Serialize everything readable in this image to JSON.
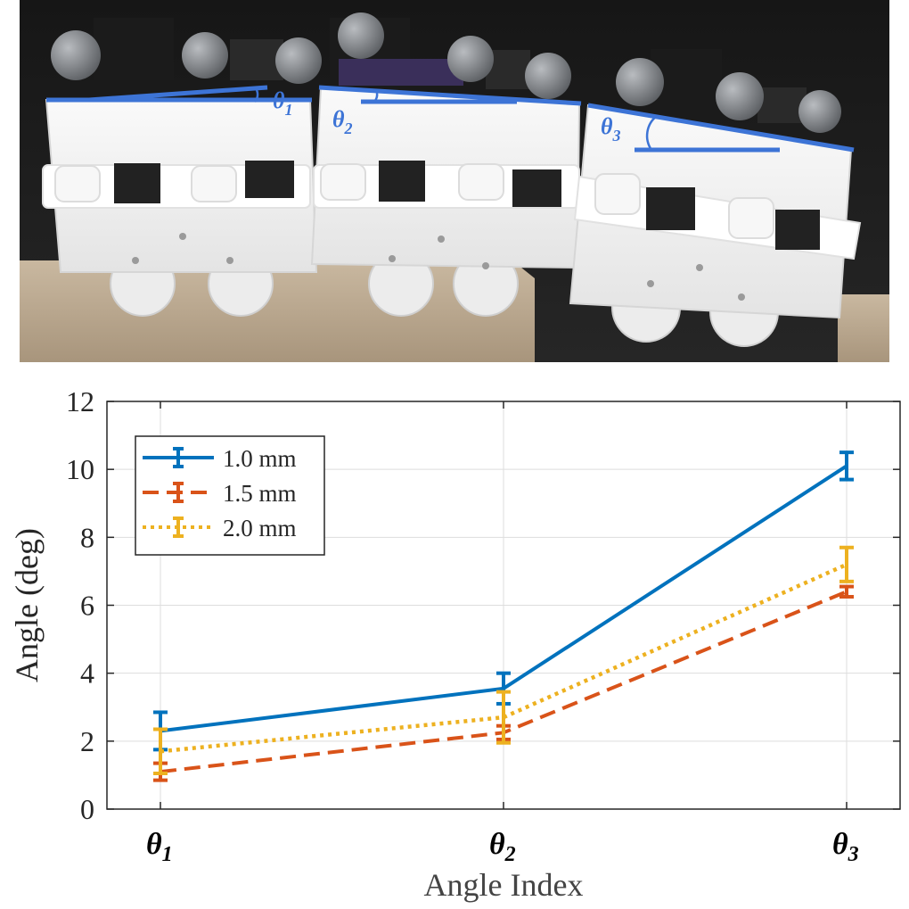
{
  "photo": {
    "labels": [
      {
        "main": "θ",
        "sub": "1"
      },
      {
        "main": "θ",
        "sub": "2"
      },
      {
        "main": "θ",
        "sub": "3"
      }
    ],
    "line_color": "#3d74d6"
  },
  "chart_data": {
    "type": "line",
    "title": "",
    "xlabel": "Angle Index",
    "ylabel": "Angle (deg)",
    "categories": [
      "θ1",
      "θ2",
      "θ3"
    ],
    "category_labels": [
      {
        "main": "θ",
        "sub": "1"
      },
      {
        "main": "θ",
        "sub": "2"
      },
      {
        "main": "θ",
        "sub": "3"
      }
    ],
    "ylim": [
      0,
      12
    ],
    "yticks": [
      0,
      2,
      4,
      6,
      8,
      10,
      12
    ],
    "grid": true,
    "legend_position": "top-left",
    "series": [
      {
        "name": "1.0 mm",
        "values": [
          2.3,
          3.55,
          10.1
        ],
        "errors": [
          0.55,
          0.45,
          0.4
        ],
        "color": "#0072bd",
        "style": "solid"
      },
      {
        "name": "1.5 mm",
        "values": [
          1.1,
          2.25,
          6.4
        ],
        "errors": [
          0.25,
          0.2,
          0.15
        ],
        "color": "#d95319",
        "style": "dashed"
      },
      {
        "name": "2.0 mm",
        "values": [
          1.7,
          2.7,
          7.2
        ],
        "errors": [
          0.65,
          0.75,
          0.5
        ],
        "color": "#edb120",
        "style": "dotted"
      }
    ]
  }
}
